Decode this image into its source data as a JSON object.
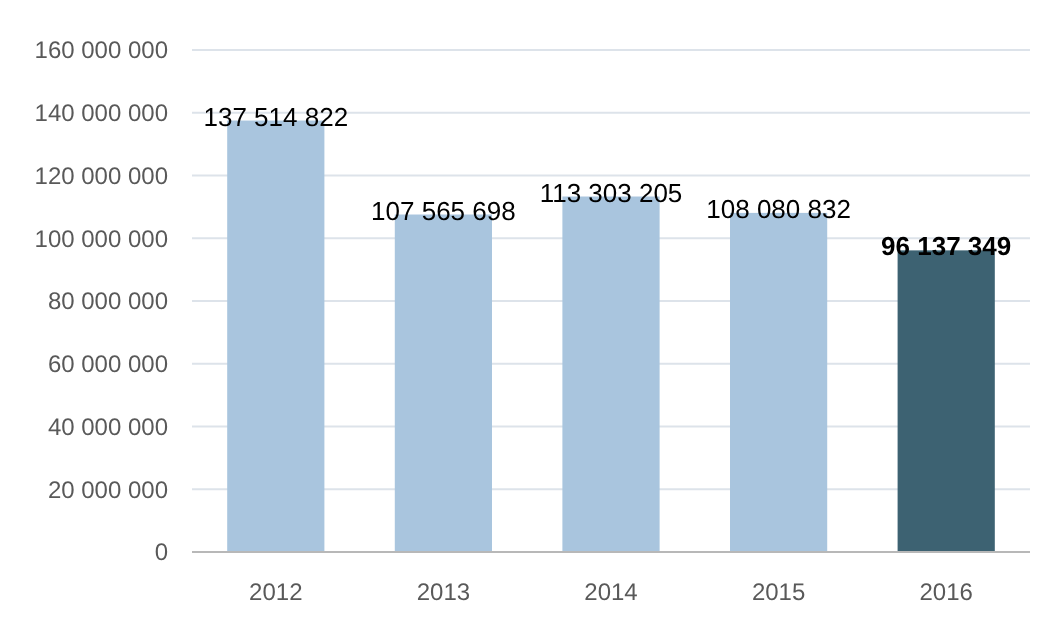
{
  "chart_data": {
    "type": "bar",
    "categories": [
      "2012",
      "2013",
      "2014",
      "2015",
      "2016"
    ],
    "values": [
      137514822,
      107565698,
      113303205,
      108080832,
      96137349
    ],
    "value_labels": [
      "137 514 822",
      "107 565 698",
      "113 303 205",
      "108 080 832",
      "96 137 349"
    ],
    "colors": [
      "#a9c5de",
      "#a9c5de",
      "#a9c5de",
      "#a9c5de",
      "#3d6272"
    ],
    "ylim": [
      0,
      160000000
    ],
    "yticks": [
      {
        "value": 0,
        "label": "0"
      },
      {
        "value": 20000000,
        "label": "20 000 000"
      },
      {
        "value": 40000000,
        "label": "40 000 000"
      },
      {
        "value": 60000000,
        "label": "60 000 000"
      },
      {
        "value": 80000000,
        "label": "80 000 000"
      },
      {
        "value": 100000000,
        "label": "100 000 000"
      },
      {
        "value": 120000000,
        "label": "120 000 000"
      },
      {
        "value": 140000000,
        "label": "140 000 000"
      },
      {
        "value": 160000000,
        "label": "160 000 000"
      }
    ],
    "grid": "y"
  }
}
